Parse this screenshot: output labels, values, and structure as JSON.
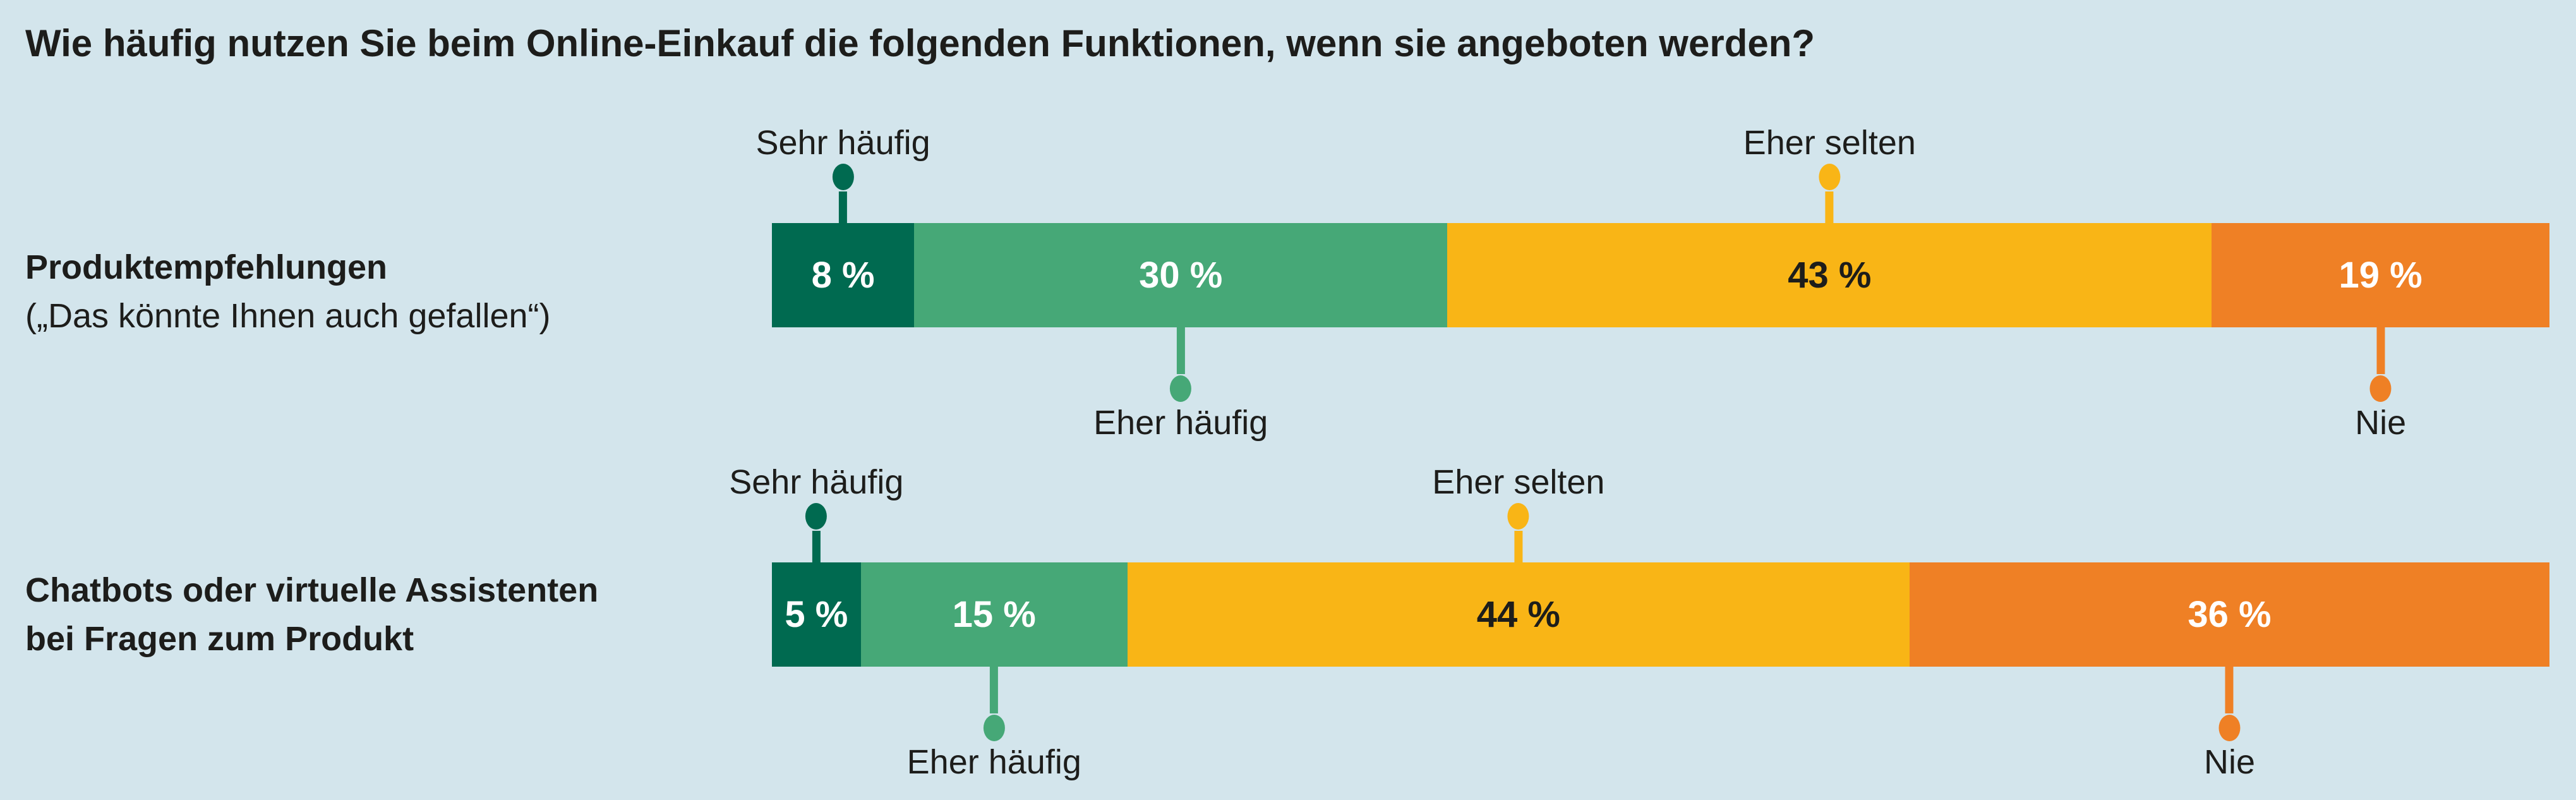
{
  "title": "Wie häufig nutzen Sie beim Online-Einkauf die folgenden Funktionen, wenn sie angeboten werden?",
  "colors": {
    "background": "#d3e5ec",
    "text": "#1d1d1b",
    "sehr_haufig": "#006a50",
    "eher_haufig": "#46a877",
    "eher_selten": "#f9b516",
    "nie": "#ef8025"
  },
  "chart_data": {
    "type": "bar",
    "stacked": true,
    "orientation": "horizontal",
    "unit": "%",
    "title": "Wie häufig nutzen Sie beim Online-Einkauf die folgenden Funktionen, wenn sie angeboten werden?",
    "xlim": [
      0,
      100
    ],
    "grid": false,
    "legend": "inline callout labels with dot-and-stem markers attached to each segment",
    "categories": [
      {
        "line1": "Produktempfehlungen",
        "line1_bold": true,
        "line2": "(„Das könnte Ihnen auch gefallen“)",
        "line2_bold": false
      },
      {
        "line1": "Chatbots oder virtuelle Assistenten",
        "line1_bold": true,
        "line2": "bei Fragen zum Produkt",
        "line2_bold": true
      }
    ],
    "series": [
      {
        "name": "Sehr häufig",
        "values": [
          8,
          5
        ],
        "value_labels": [
          "8 %",
          "5 %"
        ],
        "color": "#006a50",
        "value_label_color": "#ffffff",
        "callout": "top"
      },
      {
        "name": "Eher häufig",
        "values": [
          30,
          15
        ],
        "value_labels": [
          "30 %",
          "15 %"
        ],
        "color": "#46a877",
        "value_label_color": "#ffffff",
        "callout": "bottom"
      },
      {
        "name": "Eher selten",
        "values": [
          43,
          44
        ],
        "value_labels": [
          "43 %",
          "44 %"
        ],
        "color": "#f9b516",
        "value_label_color": "#1d1d1b",
        "callout": "top"
      },
      {
        "name": "Nie",
        "values": [
          19,
          36
        ],
        "value_labels": [
          "19 %",
          "36 %"
        ],
        "color": "#ef8025",
        "value_label_color": "#ffffff",
        "callout": "bottom"
      }
    ]
  }
}
